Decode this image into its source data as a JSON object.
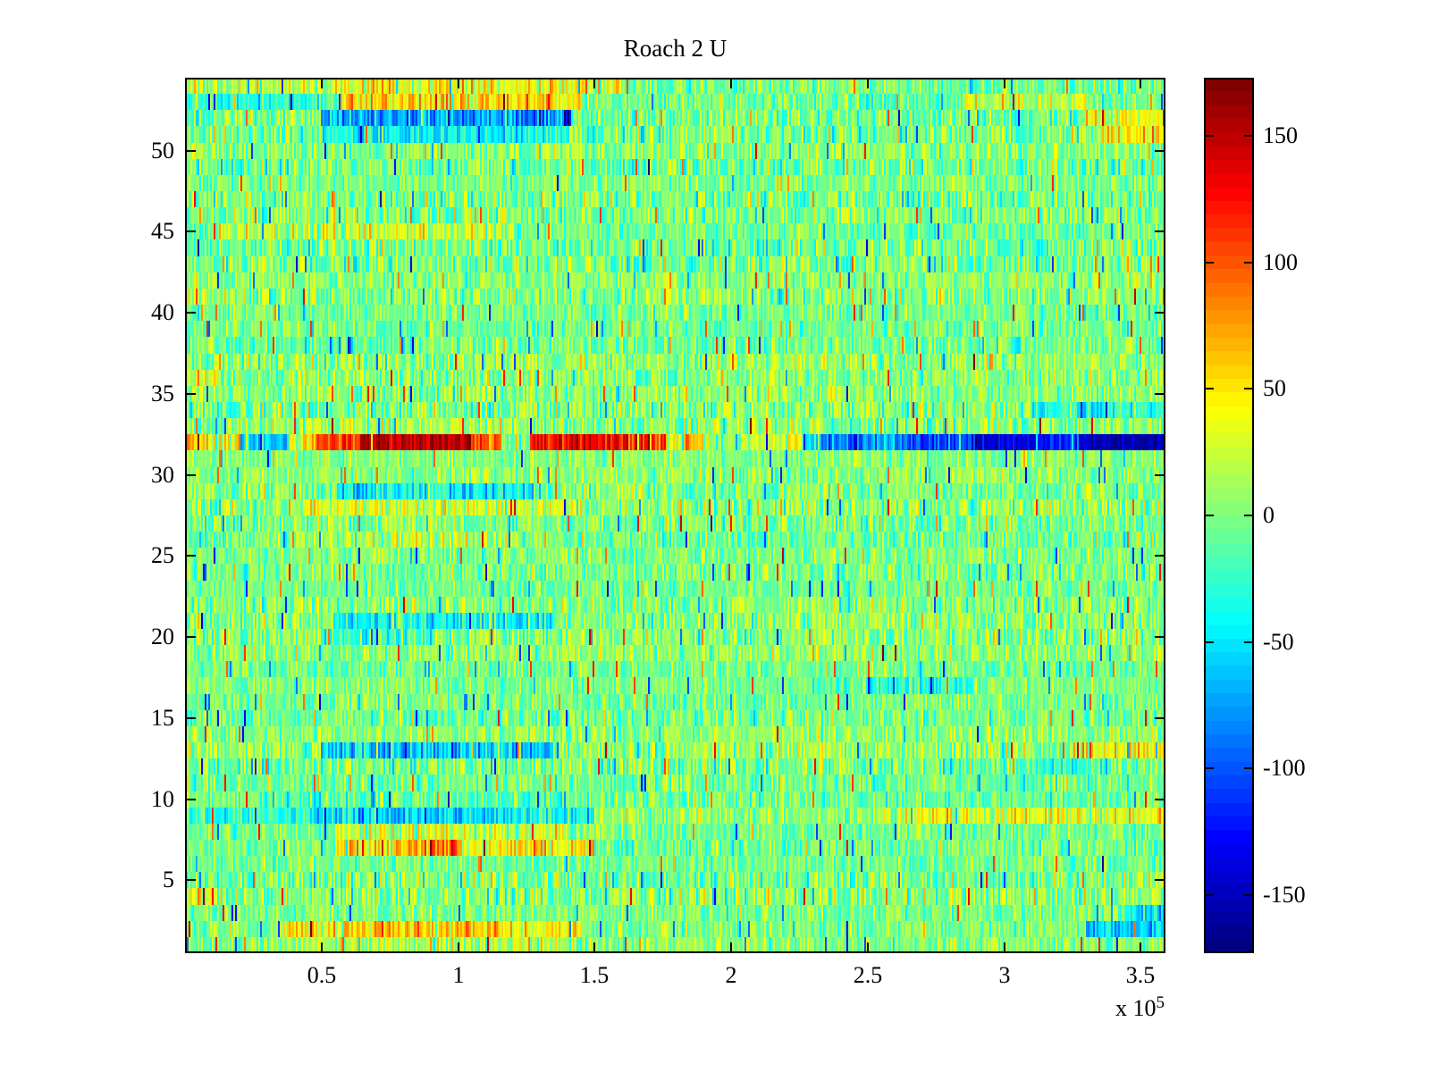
{
  "window": {
    "background": "#ffffff"
  },
  "chart_data": {
    "type": "heatmap",
    "title": "Roach 2 U",
    "x": {
      "range_e5": [
        0,
        3.59
      ],
      "scale_prefix": "x 10",
      "scale_exponent": "5",
      "ticks": [
        {
          "v": 0.5,
          "label": "0.5"
        },
        {
          "v": 1.0,
          "label": "1"
        },
        {
          "v": 1.5,
          "label": "1.5"
        },
        {
          "v": 2.0,
          "label": "2"
        },
        {
          "v": 2.5,
          "label": "2.5"
        },
        {
          "v": 3.0,
          "label": "3"
        },
        {
          "v": 3.5,
          "label": "3.5"
        }
      ]
    },
    "y": {
      "rows": 54,
      "range": [
        0.5,
        54.5
      ],
      "ticks": [
        {
          "v": 5,
          "label": "5"
        },
        {
          "v": 10,
          "label": "10"
        },
        {
          "v": 15,
          "label": "15"
        },
        {
          "v": 20,
          "label": "20"
        },
        {
          "v": 25,
          "label": "25"
        },
        {
          "v": 30,
          "label": "30"
        },
        {
          "v": 35,
          "label": "35"
        },
        {
          "v": 40,
          "label": "40"
        },
        {
          "v": 45,
          "label": "45"
        },
        {
          "v": 50,
          "label": "50"
        }
      ]
    },
    "colorbar": {
      "colormap": "jet",
      "levels": 64,
      "min": -173,
      "max": 173,
      "ticks": [
        {
          "v": 150,
          "label": "150"
        },
        {
          "v": 100,
          "label": "100"
        },
        {
          "v": 50,
          "label": "50"
        },
        {
          "v": 0,
          "label": "0"
        },
        {
          "v": -50,
          "label": "-50"
        },
        {
          "v": -100,
          "label": "-100"
        },
        {
          "v": -150,
          "label": "-150"
        }
      ]
    },
    "noise": {
      "seed": 20,
      "spike_prob": 0.032,
      "spike_min": 55,
      "spike_max": 125,
      "row_base_range": [
        -7,
        7
      ],
      "row_sigma_range": [
        15,
        26
      ]
    },
    "anomalies": [
      {
        "row": 54,
        "x0": 0.0,
        "x1": 1.6,
        "dv": 20,
        "sd": 24
      },
      {
        "row": 54,
        "x0": 0.55,
        "x1": 1.5,
        "dv": 38,
        "sd": 26
      },
      {
        "row": 53,
        "x0": 0.05,
        "x1": 0.55,
        "dv": -25,
        "sd": 18
      },
      {
        "row": 53,
        "x0": 0.57,
        "x1": 1.45,
        "dv": 55,
        "sd": 26
      },
      {
        "row": 53,
        "x0": 2.85,
        "x1": 3.3,
        "dv": 20,
        "sd": 22
      },
      {
        "row": 52,
        "x0": 0.5,
        "x1": 1.42,
        "dv": -75,
        "sd": 24
      },
      {
        "row": 52,
        "x0": 3.3,
        "x1": 3.59,
        "dv": 42,
        "sd": 24
      },
      {
        "row": 51,
        "x0": 0.5,
        "x1": 1.4,
        "dv": -42,
        "sd": 20
      },
      {
        "row": 51,
        "x0": 3.35,
        "x1": 3.59,
        "dv": 50,
        "sd": 24
      },
      {
        "row": 45,
        "x0": 0.1,
        "x1": 1.2,
        "dv": 25,
        "sd": 26
      },
      {
        "row": 36,
        "x0": 0.0,
        "x1": 0.12,
        "dv": 45,
        "sd": 20
      },
      {
        "row": 34,
        "x0": 3.1,
        "x1": 3.59,
        "dv": -32,
        "sd": 20
      },
      {
        "row": 33,
        "x0": 0.35,
        "x1": 1.2,
        "dv": 16,
        "sd": 22
      },
      {
        "row": 32,
        "x0": 0.0,
        "x1": 0.07,
        "dv": 75,
        "sd": 20
      },
      {
        "row": 32,
        "x0": 0.07,
        "x1": 0.2,
        "dv": 45,
        "sd": 30
      },
      {
        "row": 32,
        "x0": 0.2,
        "x1": 0.38,
        "dv": -65,
        "sd": 26
      },
      {
        "row": 32,
        "x0": 0.38,
        "x1": 0.46,
        "dv": 40,
        "sd": 26
      },
      {
        "row": 32,
        "x0": 0.46,
        "x1": 0.64,
        "dv": 95,
        "sd": 26
      },
      {
        "row": 32,
        "x0": 0.64,
        "x1": 1.05,
        "dv": 150,
        "sd": 16
      },
      {
        "row": 32,
        "x0": 1.05,
        "x1": 1.16,
        "dv": 100,
        "sd": 24
      },
      {
        "row": 32,
        "x0": 1.16,
        "x1": 1.26,
        "dv": 5,
        "sd": 26
      },
      {
        "row": 32,
        "x0": 1.26,
        "x1": 1.62,
        "dv": 135,
        "sd": 18
      },
      {
        "row": 32,
        "x0": 1.62,
        "x1": 1.76,
        "dv": 105,
        "sd": 22
      },
      {
        "row": 32,
        "x0": 1.76,
        "x1": 1.9,
        "dv": 40,
        "sd": 24
      },
      {
        "row": 32,
        "x0": 1.9,
        "x1": 2.07,
        "dv": 5,
        "sd": 22
      },
      {
        "row": 32,
        "x0": 2.07,
        "x1": 2.26,
        "dv": 28,
        "sd": 20
      },
      {
        "row": 32,
        "x0": 2.26,
        "x1": 2.33,
        "dv": -45,
        "sd": 20
      },
      {
        "row": 32,
        "x0": 2.33,
        "x1": 2.5,
        "dv": -85,
        "sd": 20
      },
      {
        "row": 32,
        "x0": 2.5,
        "x1": 2.6,
        "dv": -60,
        "sd": 22
      },
      {
        "row": 32,
        "x0": 2.6,
        "x1": 2.88,
        "dv": -100,
        "sd": 18
      },
      {
        "row": 32,
        "x0": 2.88,
        "x1": 3.15,
        "dv": -140,
        "sd": 14
      },
      {
        "row": 32,
        "x0": 3.15,
        "x1": 3.27,
        "dv": -110,
        "sd": 16
      },
      {
        "row": 32,
        "x0": 3.27,
        "x1": 3.59,
        "dv": -155,
        "sd": 10
      },
      {
        "row": 29,
        "x0": 0.55,
        "x1": 1.31,
        "dv": -45,
        "sd": 24
      },
      {
        "row": 28,
        "x0": 0.43,
        "x1": 1.44,
        "dv": 32,
        "sd": 22
      },
      {
        "row": 26,
        "x0": 0.4,
        "x1": 1.2,
        "dv": 16,
        "sd": 22
      },
      {
        "row": 21,
        "x0": 0.54,
        "x1": 1.35,
        "dv": -40,
        "sd": 24
      },
      {
        "row": 20,
        "x0": 0.5,
        "x1": 0.9,
        "dv": -30,
        "sd": 22
      },
      {
        "row": 17,
        "x0": 2.3,
        "x1": 2.9,
        "dv": -26,
        "sd": 22
      },
      {
        "row": 13,
        "x0": 0.5,
        "x1": 1.35,
        "dv": -58,
        "sd": 24
      },
      {
        "row": 13,
        "x0": 3.25,
        "x1": 3.59,
        "dv": 45,
        "sd": 24
      },
      {
        "row": 12,
        "x0": 3.02,
        "x1": 3.31,
        "dv": -30,
        "sd": 20
      },
      {
        "row": 10,
        "x0": 0.3,
        "x1": 1.4,
        "dv": -18,
        "sd": 24
      },
      {
        "row": 9,
        "x0": 0.0,
        "x1": 0.45,
        "dv": -25,
        "sd": 20
      },
      {
        "row": 9,
        "x0": 0.45,
        "x1": 1.2,
        "dv": -58,
        "sd": 22
      },
      {
        "row": 9,
        "x0": 1.2,
        "x1": 1.5,
        "dv": -30,
        "sd": 22
      },
      {
        "row": 9,
        "x0": 2.6,
        "x1": 3.59,
        "dv": 32,
        "sd": 24
      },
      {
        "row": 8,
        "x0": 0.53,
        "x1": 1.39,
        "dv": 25,
        "sd": 24
      },
      {
        "row": 7,
        "x0": 0.55,
        "x1": 0.78,
        "dv": 55,
        "sd": 26
      },
      {
        "row": 7,
        "x0": 0.78,
        "x1": 1.01,
        "dv": 85,
        "sd": 24
      },
      {
        "row": 7,
        "x0": 1.01,
        "x1": 1.5,
        "dv": 45,
        "sd": 26
      },
      {
        "row": 4,
        "x0": 0.0,
        "x1": 0.1,
        "dv": 40,
        "sd": 20
      },
      {
        "row": 3,
        "x0": 3.44,
        "x1": 3.59,
        "dv": -45,
        "sd": 20
      },
      {
        "row": 2,
        "x0": 0.35,
        "x1": 0.55,
        "dv": 40,
        "sd": 24
      },
      {
        "row": 2,
        "x0": 0.55,
        "x1": 1.15,
        "dv": 62,
        "sd": 24
      },
      {
        "row": 2,
        "x0": 1.15,
        "x1": 1.45,
        "dv": 40,
        "sd": 24
      },
      {
        "row": 2,
        "x0": 3.3,
        "x1": 3.59,
        "dv": -58,
        "sd": 20
      },
      {
        "row": 1,
        "x0": 0.4,
        "x1": 1.5,
        "dv": 15,
        "sd": 26
      }
    ]
  }
}
